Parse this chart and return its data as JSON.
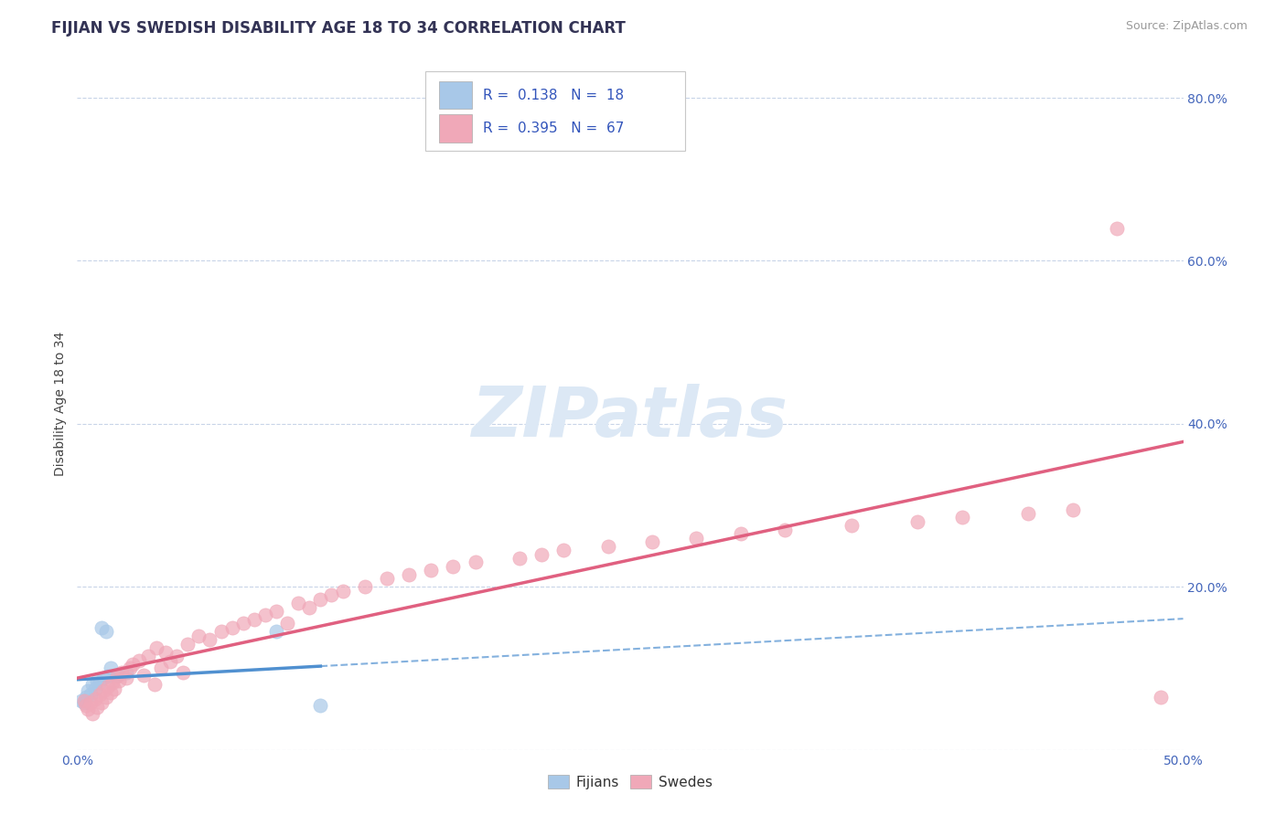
{
  "title": "FIJIAN VS SWEDISH DISABILITY AGE 18 TO 34 CORRELATION CHART",
  "source": "Source: ZipAtlas.com",
  "ylabel": "Disability Age 18 to 34",
  "xmin": 0.0,
  "xmax": 0.5,
  "ymin": 0.0,
  "ymax": 0.85,
  "yticks": [
    0.0,
    0.2,
    0.4,
    0.6,
    0.8
  ],
  "ytick_labels": [
    "",
    "20.0%",
    "40.0%",
    "60.0%",
    "80.0%"
  ],
  "legend_R_fijian": "0.138",
  "legend_N_fijian": "18",
  "legend_R_swedish": "0.395",
  "legend_N_swedish": "67",
  "fijian_color": "#a8c8e8",
  "swedish_color": "#f0a8b8",
  "fijian_line_color": "#5090d0",
  "swedish_line_color": "#e06080",
  "fijian_dash_color": "#88b8e0",
  "background_color": "#ffffff",
  "grid_color": "#c8d4e8",
  "watermark_color": "#dce8f5",
  "title_fontsize": 12,
  "label_fontsize": 10,
  "tick_fontsize": 10,
  "fijian_x": [
    0.002,
    0.003,
    0.004,
    0.005,
    0.006,
    0.007,
    0.008,
    0.009,
    0.01,
    0.011,
    0.012,
    0.013,
    0.014,
    0.015,
    0.018,
    0.022,
    0.09,
    0.11
  ],
  "fijian_y": [
    0.06,
    0.058,
    0.065,
    0.072,
    0.068,
    0.08,
    0.075,
    0.085,
    0.082,
    0.15,
    0.088,
    0.145,
    0.09,
    0.1,
    0.092,
    0.095,
    0.145,
    0.055
  ],
  "swedish_x": [
    0.003,
    0.004,
    0.005,
    0.006,
    0.007,
    0.008,
    0.009,
    0.01,
    0.011,
    0.012,
    0.013,
    0.014,
    0.015,
    0.016,
    0.017,
    0.018,
    0.019,
    0.02,
    0.022,
    0.024,
    0.025,
    0.028,
    0.03,
    0.032,
    0.035,
    0.036,
    0.038,
    0.04,
    0.042,
    0.045,
    0.048,
    0.05,
    0.055,
    0.06,
    0.065,
    0.07,
    0.075,
    0.08,
    0.085,
    0.09,
    0.095,
    0.1,
    0.105,
    0.11,
    0.115,
    0.12,
    0.13,
    0.14,
    0.15,
    0.16,
    0.17,
    0.18,
    0.2,
    0.21,
    0.22,
    0.24,
    0.26,
    0.28,
    0.3,
    0.32,
    0.35,
    0.38,
    0.4,
    0.43,
    0.45,
    0.47,
    0.49
  ],
  "swedish_y": [
    0.06,
    0.055,
    0.05,
    0.058,
    0.045,
    0.062,
    0.052,
    0.068,
    0.058,
    0.072,
    0.065,
    0.078,
    0.07,
    0.082,
    0.075,
    0.09,
    0.085,
    0.095,
    0.088,
    0.1,
    0.105,
    0.11,
    0.092,
    0.115,
    0.08,
    0.125,
    0.1,
    0.12,
    0.108,
    0.115,
    0.095,
    0.13,
    0.14,
    0.135,
    0.145,
    0.15,
    0.155,
    0.16,
    0.165,
    0.17,
    0.155,
    0.18,
    0.175,
    0.185,
    0.19,
    0.195,
    0.2,
    0.21,
    0.215,
    0.22,
    0.225,
    0.23,
    0.235,
    0.24,
    0.245,
    0.25,
    0.255,
    0.26,
    0.265,
    0.27,
    0.275,
    0.28,
    0.285,
    0.29,
    0.295,
    0.64,
    0.065
  ]
}
